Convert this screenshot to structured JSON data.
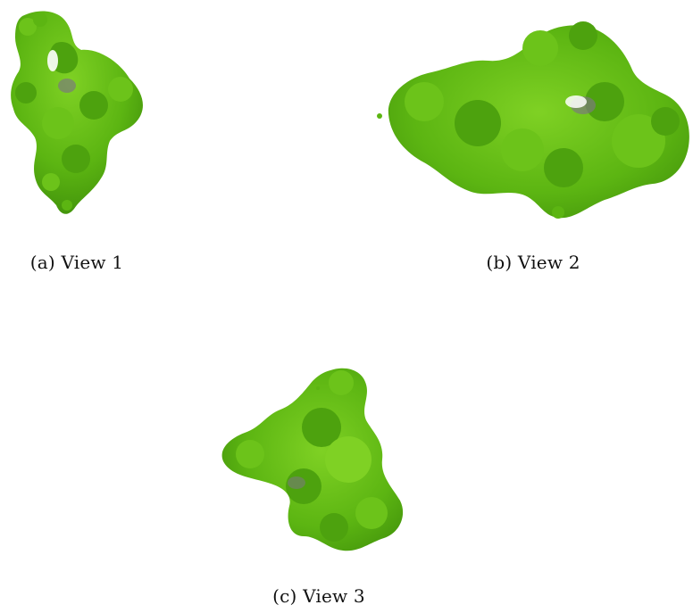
{
  "figure": {
    "panels": [
      {
        "caption": "(a) View 1",
        "subject": "protein-density-map"
      },
      {
        "caption": "(b) View 2",
        "subject": "protein-density-map"
      },
      {
        "caption": "(c) View 3",
        "subject": "protein-density-map"
      }
    ],
    "colors": {
      "density_dark": "#3f8f0a",
      "density_main": "#5cb512",
      "density_light": "#7fd124",
      "core_gray": "#7a7a7a"
    }
  }
}
